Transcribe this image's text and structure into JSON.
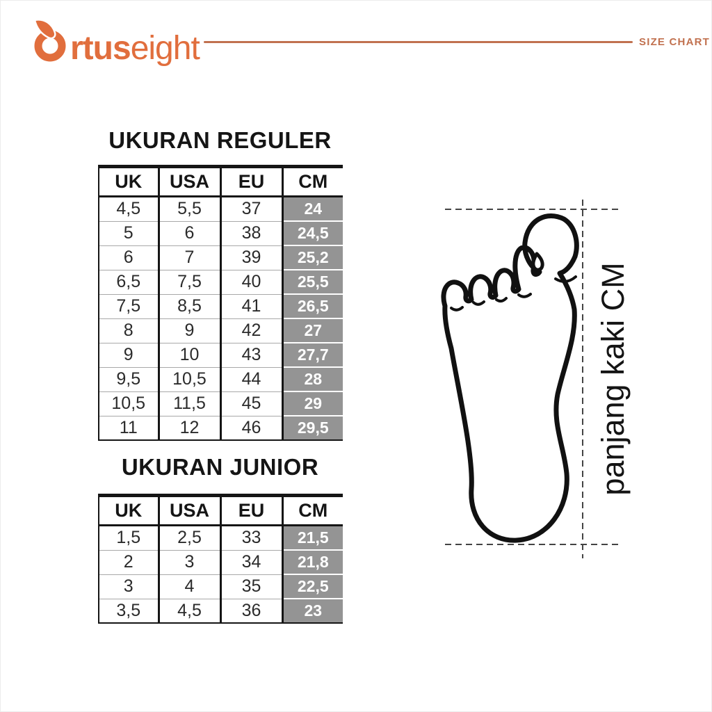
{
  "brand": {
    "logo_bold": "rtus",
    "logo_light": "eight"
  },
  "header": {
    "size_chart_label": "SIZE CHART"
  },
  "colors": {
    "brand_orange": "#E16E3D",
    "muted_terracotta": "#C1714F",
    "cm_cell_gray": "#949494",
    "ink": "#151515"
  },
  "regular_table": {
    "title": "UKURAN REGULER",
    "headers": [
      "UK",
      "USA",
      "EU",
      "CM"
    ],
    "rows": [
      [
        "4,5",
        "5,5",
        "37",
        "24"
      ],
      [
        "5",
        "6",
        "38",
        "24,5"
      ],
      [
        "6",
        "7",
        "39",
        "25,2"
      ],
      [
        "6,5",
        "7,5",
        "40",
        "25,5"
      ],
      [
        "7,5",
        "8,5",
        "41",
        "26,5"
      ],
      [
        "8",
        "9",
        "42",
        "27"
      ],
      [
        "9",
        "10",
        "43",
        "27,7"
      ],
      [
        "9,5",
        "10,5",
        "44",
        "28"
      ],
      [
        "10,5",
        "11,5",
        "45",
        "29"
      ],
      [
        "11",
        "12",
        "46",
        "29,5"
      ]
    ]
  },
  "junior_table": {
    "title": "UKURAN JUNIOR",
    "headers": [
      "UK",
      "USA",
      "EU",
      "CM"
    ],
    "rows": [
      [
        "1,5",
        "2,5",
        "33",
        "21,5"
      ],
      [
        "2",
        "3",
        "34",
        "21,8"
      ],
      [
        "3",
        "4",
        "35",
        "22,5"
      ],
      [
        "3,5",
        "4,5",
        "36",
        "23"
      ]
    ]
  },
  "foot_diagram": {
    "label": "panjang kaki CM"
  }
}
